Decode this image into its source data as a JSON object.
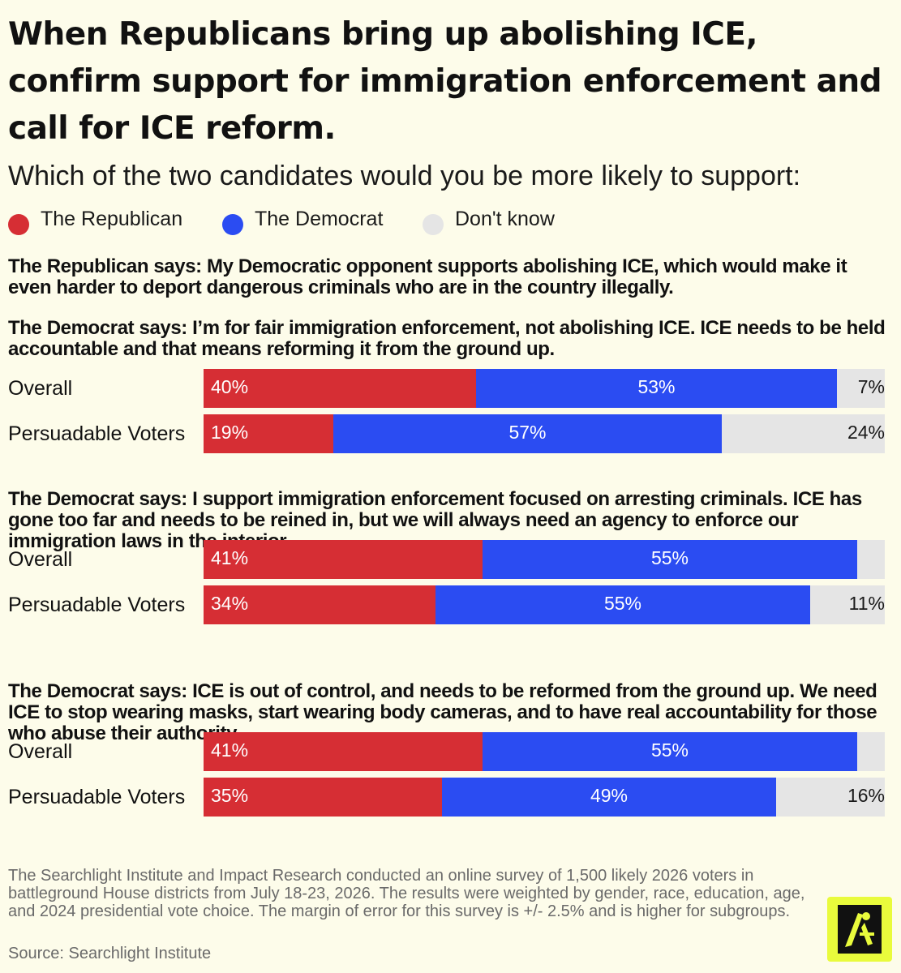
{
  "title": "When Republicans bring up abolishing ICE, confirm support for immigration enforcement and call for ICE reform.",
  "subtitle": "Which of the two candidates would you be more likely to support:",
  "legend": [
    {
      "label": "The Republican",
      "color": "#d62e34"
    },
    {
      "label": "The Democrat",
      "color": "#2b4cf2"
    },
    {
      "label": "Don't know",
      "color": "#e5e5e5"
    }
  ],
  "republican_statement": "The Republican says: My Democratic opponent supports abolishing ICE, which would make it even harder to deport dangerous criminals who are in the country illegally.",
  "footnote": "The Searchlight Institute and Impact Research conducted an online survey of 1,500 likely 2026 voters in battleground House districts from July 18-23, 2026. The results were weighted by gender, race, education, age, and 2024 presidential vote choice. The margin of error for this survey is +/- 2.5% and is higher for subgroups.",
  "source": "Source: Searchlight Institute",
  "logo": {
    "icon": "searchlight-logo-icon"
  },
  "chart_data": {
    "type": "bar",
    "orientation": "horizontal",
    "stacked": true,
    "xlim": [
      0,
      100
    ],
    "categories": [
      "Overall",
      "Persuadable Voters"
    ],
    "series_names": [
      "The Republican",
      "The Democrat",
      "Don't know"
    ],
    "series_colors": [
      "#d62e34",
      "#2b4cf2",
      "#e5e5e5"
    ],
    "panels": [
      {
        "statement": "The Democrat says: I’m for fair immigration enforcement, not abolishing ICE. ICE needs to be held accountable and that means reforming it from the ground up.",
        "rows": [
          {
            "label": "Overall",
            "values": [
              40,
              53,
              7
            ],
            "labels": [
              "40%",
              "53%",
              "7%"
            ]
          },
          {
            "label": "Persuadable Voters",
            "values": [
              19,
              57,
              24
            ],
            "labels": [
              "19%",
              "57%",
              "24%"
            ]
          }
        ]
      },
      {
        "statement": "The Democrat says: I support immigration enforcement focused on arresting criminals. ICE has gone too far and needs to be reined in, but we will always need an agency to enforce our immigration laws in the interior.",
        "rows": [
          {
            "label": "Overall",
            "values": [
              41,
              55,
              4
            ],
            "labels": [
              "41%",
              "55%",
              ""
            ]
          },
          {
            "label": "Persuadable Voters",
            "values": [
              34,
              55,
              11
            ],
            "labels": [
              "34%",
              "55%",
              "11%"
            ]
          }
        ]
      },
      {
        "statement": "The Democrat says: ICE is out of control, and needs to be reformed from the ground up. We need ICE to stop wearing masks, start wearing body cameras, and to have real accountability for those who abuse their authority.",
        "rows": [
          {
            "label": "Overall",
            "values": [
              41,
              55,
              4
            ],
            "labels": [
              "41%",
              "55%",
              ""
            ]
          },
          {
            "label": "Persuadable Voters",
            "values": [
              35,
              49,
              16
            ],
            "labels": [
              "35%",
              "49%",
              "16%"
            ]
          }
        ]
      }
    ]
  }
}
